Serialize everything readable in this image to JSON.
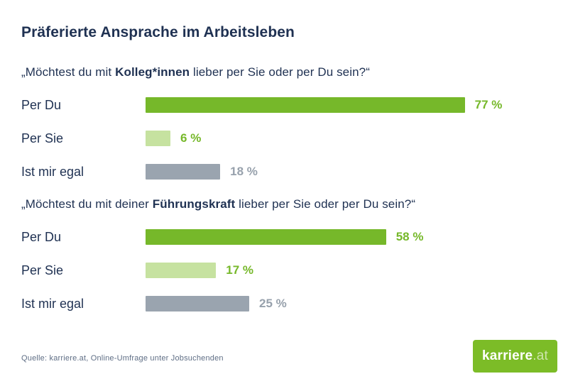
{
  "page": {
    "title": "Präferierte Ansprache im Arbeitsleben"
  },
  "sections": [
    {
      "question_prefix": "„Möchtest du mit ",
      "question_bold": "Kolleg*innen",
      "question_suffix": " lieber per Sie oder per Du sein?“"
    },
    {
      "question_prefix": "„Möchtest du mit deiner ",
      "question_bold": "Führungskraft",
      "question_suffix": " lieber per Sie oder per Du sein?“"
    }
  ],
  "chart_data": [
    {
      "type": "bar",
      "orientation": "horizontal",
      "title": "„Möchtest du mit Kolleg*innen lieber per Sie oder per Du sein?“",
      "categories": [
        "Per Du",
        "Per Sie",
        "Ist mir egal"
      ],
      "values": [
        77,
        6,
        18
      ],
      "unit": "%",
      "value_label_format": "value space percent",
      "xlim": [
        0,
        100
      ],
      "grid": false,
      "legend": false
    },
    {
      "type": "bar",
      "orientation": "horizontal",
      "title": "„Möchtest du mit deiner Führungskraft lieber per Sie oder per Du sein?“",
      "categories": [
        "Per Du",
        "Per Sie",
        "Ist mir egal"
      ],
      "values": [
        58,
        17,
        25
      ],
      "unit": "%",
      "value_label_format": "value space percent",
      "xlim": [
        0,
        100
      ],
      "grid": false,
      "legend": false
    }
  ],
  "colors": {
    "bar_colors": [
      "#76b82a",
      "#c6e2a0",
      "#9aa4af"
    ],
    "value_colors": [
      "#76b82a",
      "#76b82a",
      "#97a1ac"
    ],
    "heading_navy": "#1f3152",
    "brand_green": "#76b82a",
    "source_gray": "#5f6e85",
    "logo_background": "#7cbc27"
  },
  "footer": {
    "source_text": "Quelle: karriere.at, Online-Umfrage unter Jobsuchenden",
    "logo_name": "karriere",
    "logo_tld": ".at"
  }
}
